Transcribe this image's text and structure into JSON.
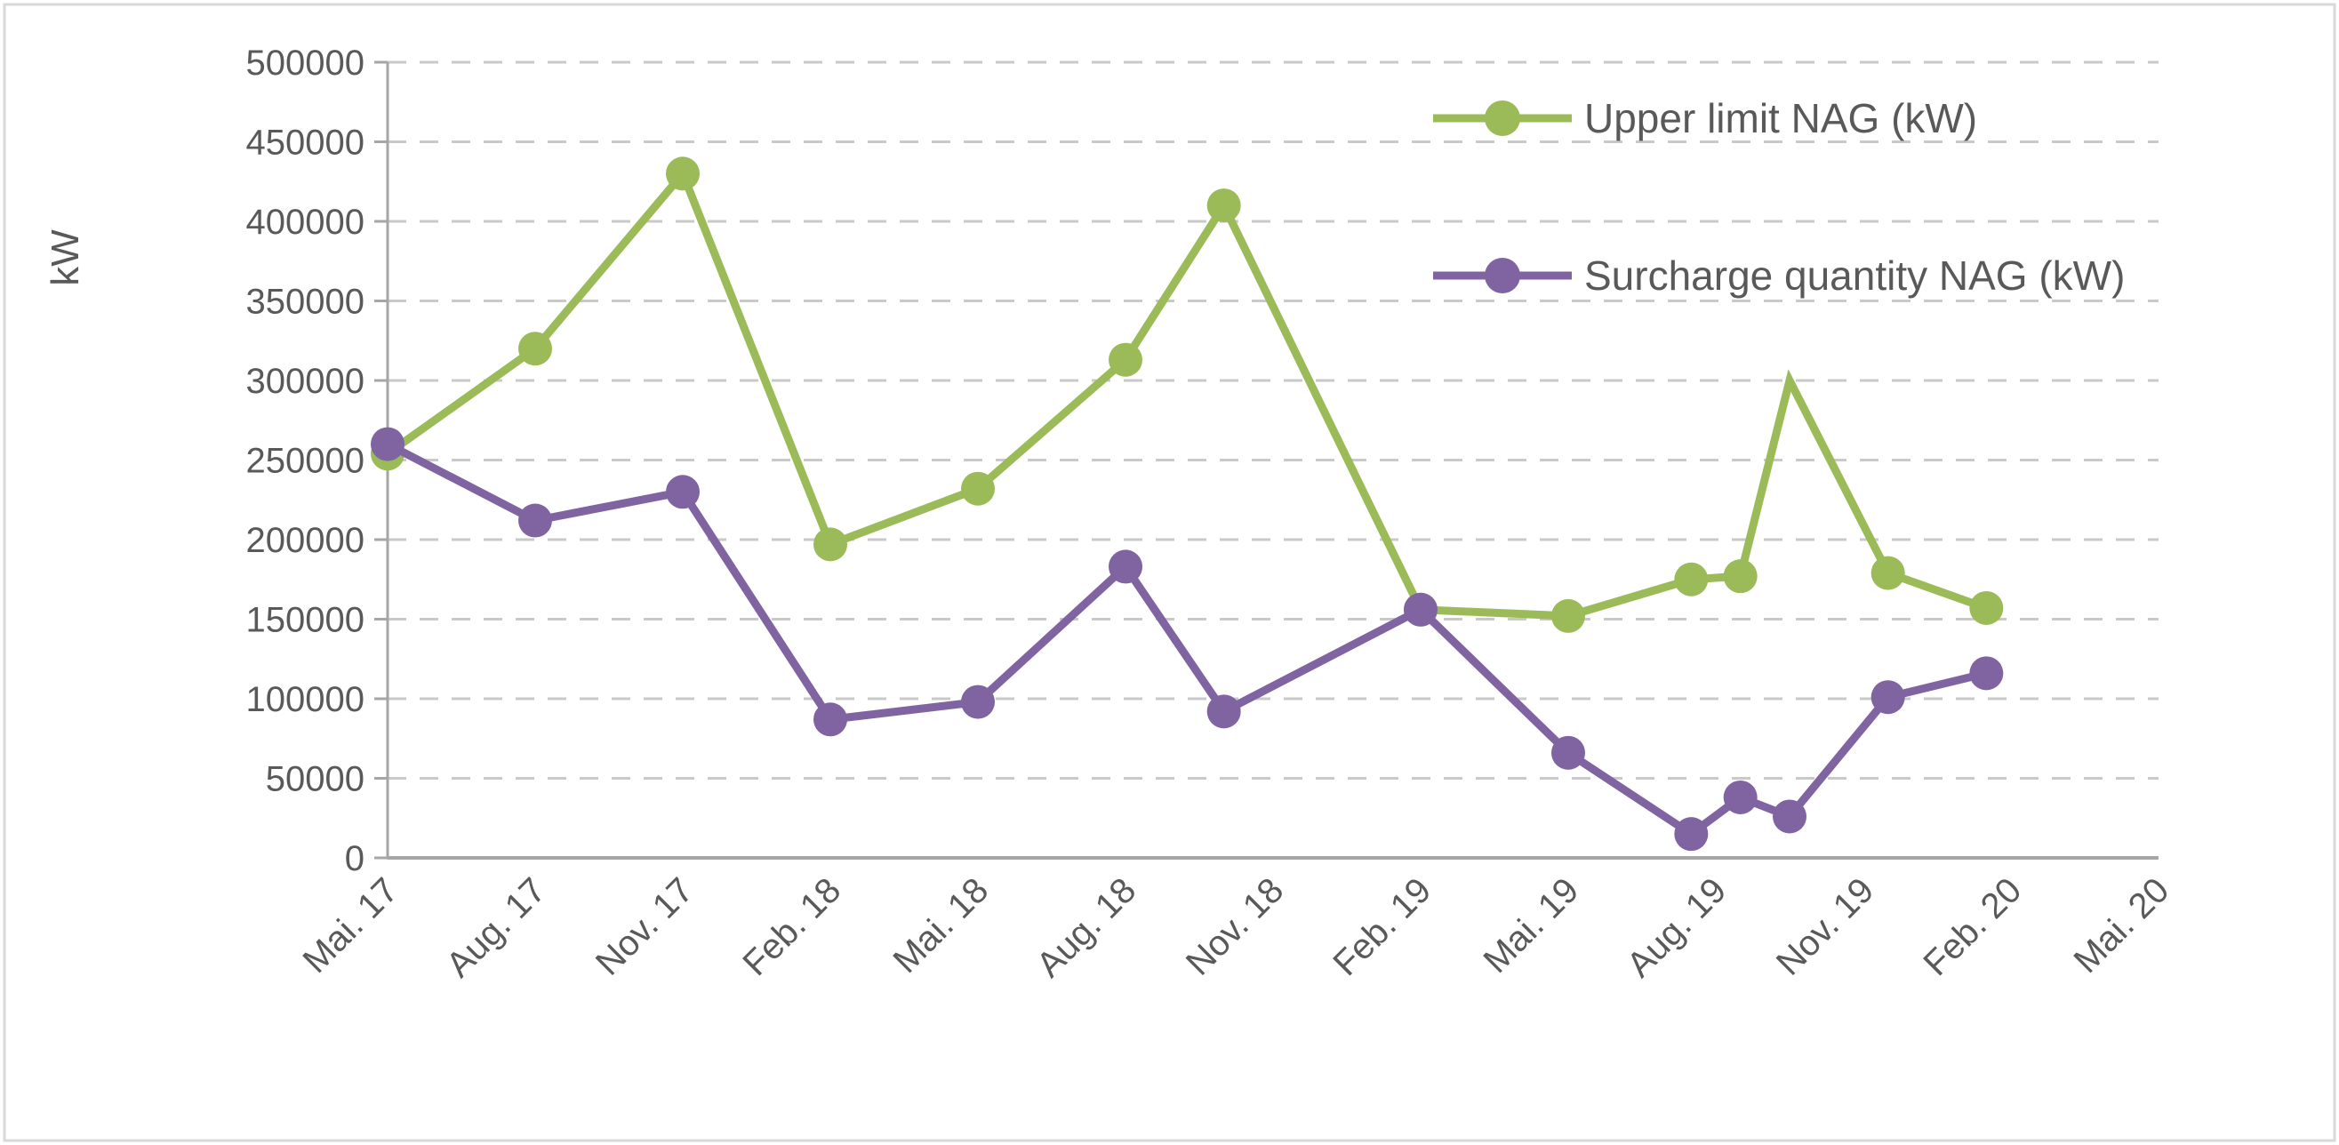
{
  "frame": {
    "border_color": "#D9D9D9",
    "background_color": "#FFFFFF"
  },
  "chart_data": {
    "type": "line",
    "title": "",
    "ylabel": "kW",
    "xlabel": "",
    "ylim": [
      0,
      500000
    ],
    "y_tick_step": 50000,
    "y_tick_labels": [
      "0",
      "50000",
      "100000",
      "150000",
      "200000",
      "250000",
      "300000",
      "350000",
      "400000",
      "450000",
      "500000"
    ],
    "x_tick_labels": [
      "Mai. 17",
      "Aug. 17",
      "Nov. 17",
      "Feb. 18",
      "Mai. 18",
      "Aug. 18",
      "Nov. 18",
      "Feb. 19",
      "Mai. 19",
      "Aug. 19",
      "Nov. 19",
      "Feb. 20",
      "Mai. 20"
    ],
    "x_tick_months": [
      0,
      3,
      6,
      9,
      12,
      15,
      18,
      21,
      24,
      27,
      30,
      33,
      36
    ],
    "x_axis_months_range": [
      0,
      36
    ],
    "grid": "horizontal-dashed",
    "legend_position": "inside-top-right",
    "gridline_color": "#C9C9C9",
    "axis_color": "#A6A6A6",
    "text_color": "#595959",
    "series": [
      {
        "name": "Upper limit NAG (kW)",
        "color": "#9BBB59",
        "months": [
          0,
          3,
          6,
          9,
          12,
          15,
          17,
          21,
          24,
          26.5,
          27.5,
          28.5,
          30.5,
          32.5
        ],
        "values": [
          254000,
          320000,
          430000,
          197000,
          232000,
          313000,
          410000,
          156000,
          152000,
          175000,
          177000,
          300000,
          179000,
          157000
        ],
        "no_marker_index": 11
      },
      {
        "name": "Surcharge quantity NAG (kW)",
        "color": "#8064A2",
        "months": [
          0,
          3,
          6,
          9,
          12,
          15,
          17,
          21,
          24,
          26.5,
          27.5,
          28.5,
          30.5,
          32.5
        ],
        "values": [
          260000,
          212000,
          230000,
          87000,
          98000,
          183000,
          92000,
          156000,
          66000,
          15000,
          38000,
          26000,
          101000,
          116000
        ],
        "no_marker_index": -1
      }
    ]
  }
}
